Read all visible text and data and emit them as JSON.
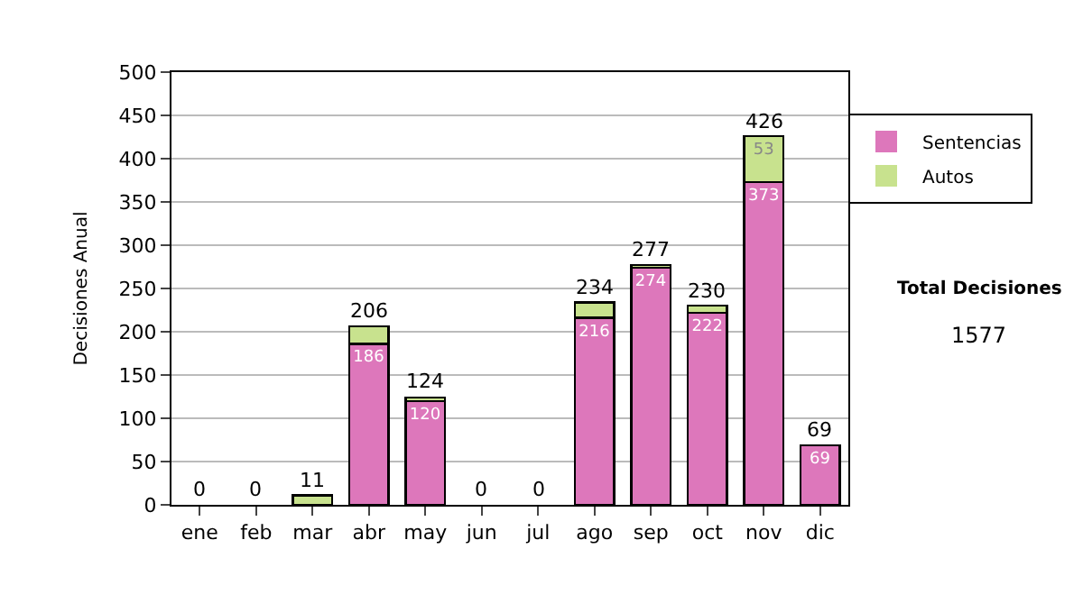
{
  "chart_data": {
    "type": "bar",
    "stacked": true,
    "ylabel": "Decisiones Anual",
    "categories": [
      "ene",
      "feb",
      "mar",
      "abr",
      "may",
      "jun",
      "jul",
      "ago",
      "sep",
      "oct",
      "nov",
      "dic"
    ],
    "series": [
      {
        "name": "Sentencias",
        "color": "#dd77bb",
        "values": [
          0,
          0,
          0,
          186,
          120,
          0,
          0,
          216,
          274,
          222,
          373,
          69
        ],
        "value_labels": [
          null,
          null,
          null,
          "186",
          "120",
          null,
          null,
          "216",
          "274",
          "222",
          "373",
          "69"
        ]
      },
      {
        "name": "Autos",
        "color": "#c8e28e",
        "values": [
          0,
          0,
          11,
          20,
          4,
          0,
          0,
          18,
          3,
          8,
          53,
          0
        ],
        "value_labels": [
          null,
          null,
          null,
          null,
          null,
          null,
          null,
          null,
          null,
          null,
          "53",
          null
        ]
      }
    ],
    "totals": [
      "0",
      "0",
      "11",
      "206",
      "124",
      "0",
      "0",
      "234",
      "277",
      "230",
      "426",
      "69"
    ],
    "ylim": [
      0,
      500
    ],
    "yticks": [
      0,
      50,
      100,
      150,
      200,
      250,
      300,
      350,
      400,
      450,
      500
    ],
    "grid": "y",
    "legend": "right",
    "annotations": [
      "Total Decisiones",
      "1577"
    ]
  }
}
